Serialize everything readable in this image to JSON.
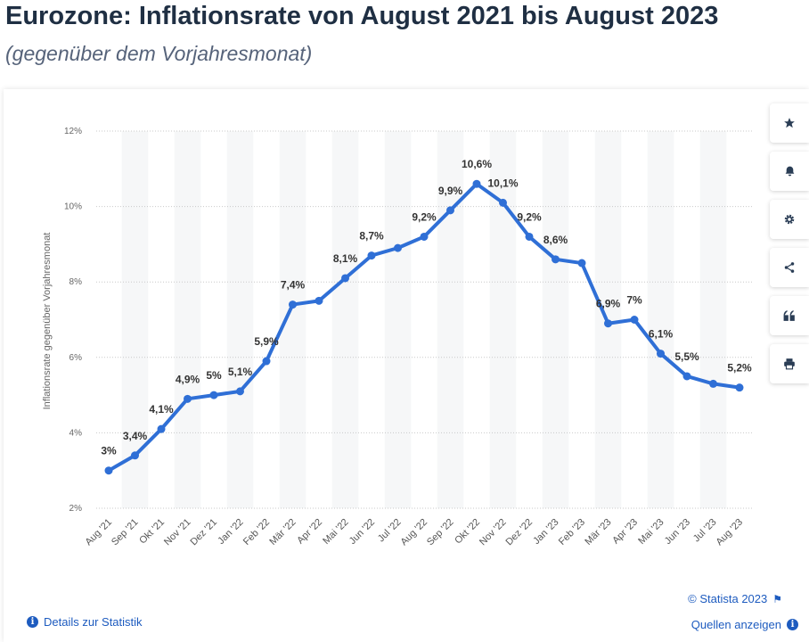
{
  "header": {
    "title": "Eurozone: Inflationsrate von August 2021 bis August 2023",
    "subtitle": "(gegenüber dem Vorjahresmonat)"
  },
  "toolbar": {
    "icons": [
      "star-icon",
      "bell-icon",
      "gear-icon",
      "share-icon",
      "quote-icon",
      "print-icon"
    ]
  },
  "footer": {
    "copyright": "© Statista 2023",
    "details_label": "Details zur Statistik",
    "sources_label": "Quellen anzeigen"
  },
  "colors": {
    "line": "#2f6fd6",
    "title": "#1f2f43",
    "link": "#1d5bbf"
  },
  "chart_data": {
    "type": "line",
    "title": "Eurozone: Inflationsrate von August 2021 bis August 2023",
    "subtitle": "(gegenüber dem Vorjahresmonat)",
    "ylabel": "Inflationsrate gegenüber Vorjahresmonat",
    "xlabel": "",
    "ylim": [
      2,
      12
    ],
    "yticks": [
      2,
      4,
      6,
      8,
      10,
      12
    ],
    "ytick_labels": [
      "2%",
      "4%",
      "6%",
      "8%",
      "10%",
      "12%"
    ],
    "grid": "horizontal dotted, alternating vertical bands",
    "categories": [
      "Aug '21",
      "Sep '21",
      "Okt '21",
      "Nov '21",
      "Dez '21",
      "Jan '22",
      "Feb '22",
      "Mär '22",
      "Apr '22",
      "Mai '22",
      "Jun '22",
      "Jul '22",
      "Aug '22",
      "Sep '22",
      "Okt '22",
      "Nov '22",
      "Dez '22",
      "Jan '23",
      "Feb '23",
      "Mär '23",
      "Apr '23",
      "Mai '23",
      "Jun '23",
      "Jul '23",
      "Aug '23"
    ],
    "values": [
      3,
      3.4,
      4.1,
      4.9,
      5,
      5.1,
      5.9,
      7.4,
      7.5,
      8.1,
      8.7,
      8.9,
      9.2,
      9.9,
      10.6,
      10.1,
      9.2,
      8.6,
      8.5,
      6.9,
      7,
      6.1,
      5.5,
      5.3,
      5.2
    ],
    "data_labels": [
      "3%",
      "3,4%",
      "4,1%",
      "4,9%",
      "5%",
      "5,1%",
      "5,9%",
      "7,4%",
      "",
      "8,1%",
      "8,7%",
      "",
      "9,2%",
      "9,9%",
      "10,6%",
      "10,1%",
      "9,2%",
      "8,6%",
      "",
      "6,9%",
      "7%",
      "6,1%",
      "5,5%",
      "",
      "5,2%"
    ]
  }
}
